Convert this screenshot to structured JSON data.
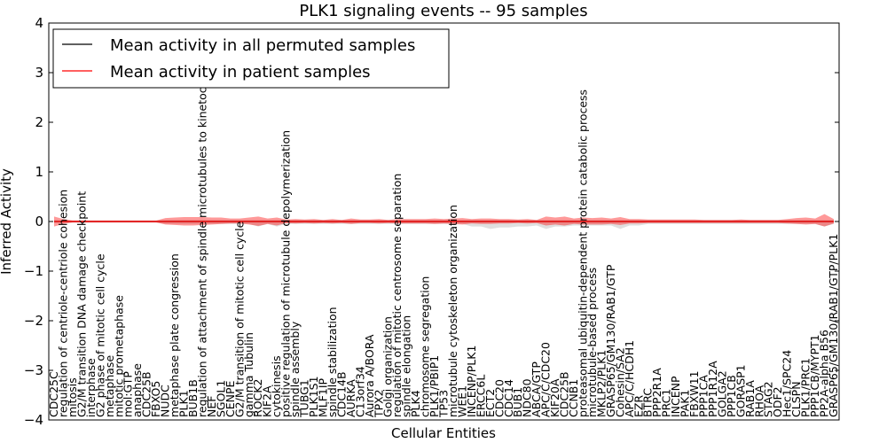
{
  "chart_data": {
    "type": "line",
    "title": "PLK1 signaling events -- 95 samples",
    "xlabel": "Cellular Entities",
    "ylabel": "Inferred Activity",
    "ylim": [
      -4,
      4
    ],
    "yticks": [
      "−4",
      "−3",
      "−2",
      "−1",
      "0",
      "1",
      "2",
      "3",
      "4"
    ],
    "ytick_values": [
      -4,
      -3,
      -2,
      -1,
      0,
      1,
      2,
      3,
      4
    ],
    "legend": {
      "location": "top-left",
      "entries": [
        {
          "label": "Mean activity in all permuted samples",
          "color": "#000000"
        },
        {
          "label": "Mean activity in patient samples",
          "color": "#ff0000"
        }
      ]
    },
    "categories": [
      "CDC25C",
      "regulation of centriole-centriole cohesion",
      "mitosis",
      "G2/M transition DNA damage checkpoint",
      "interphase",
      "G2 phase of mitotic cell cycle",
      "metaphase",
      "mitotic prometaphase",
      "mol:GTP",
      "anaphase",
      "CDC25B",
      "FBXO5",
      "NUDC",
      "metaphase plate congression",
      "PLK1",
      "BUB1B",
      "regulation of attachment of spindle microtubules to kinetochore",
      "NEF",
      "SGOL1",
      "CENPE",
      "G2/M transition of mitotic cell cycle",
      "gamma Tubulin",
      "ROCK2",
      "KIF2A",
      "cytokinesis",
      "positive regulation of microtubule depolymerization",
      "spindle assembly",
      "TUBG1",
      "PLK1S1",
      "MLF1IP",
      "spindle stabilization",
      "CDC14B",
      "AURKA",
      "C13orf34",
      "Aurora A/BORA",
      "TPX2",
      "Golgi organization",
      "regulation of mitotic centrosome separation",
      "spindle elongation",
      "PLK4",
      "chromosome segregation",
      "PLK1/PBIP1",
      "TP53",
      "microtubule cytoskeleton organization",
      "WEE1",
      "INCENP/PLK1",
      "ERCC6L",
      "ECT2",
      "CDC20",
      "CDC14",
      "BUB1",
      "NDC80",
      "ABCA/GTP",
      "APC/C/CDC20",
      "KIF20A",
      "CDC25B",
      "CCNB1",
      "proteasomal ubiquitin-dependent protein catabolic process",
      "microtubule-based process",
      "MKLP2/PLK1",
      "GRASP65/GM130/RAB1/GTP",
      "Cohesin/SA2",
      "APC/C/HCDH1",
      "EZR",
      "BTRC",
      "PPP2R1A",
      "PRC1",
      "INCENP",
      "PAK1",
      "FBXW11",
      "PPP1CA",
      "PPP1R12A",
      "GOLGA2",
      "PPP1CB",
      "GORASP1",
      "RAB1A",
      "RHOA",
      "STAG2",
      "ODF2",
      "Hec1/SPC24",
      "CLSPN",
      "PLK1/PRC1",
      "PPP1CB/MYPT1",
      "PP2A-alpha B56",
      "GRASP65/GM130/RAB1/GTP/PLK1"
    ],
    "series": [
      {
        "name": "Mean activity in patient samples",
        "color": "#ff0000",
        "values": [
          0.0,
          0.0,
          0.0,
          0.0,
          0.0,
          0.0,
          0.0,
          0.0,
          0.0,
          0.0,
          0.0,
          0.0,
          0.0,
          0.0,
          0.0,
          0.0,
          0.0,
          0.0,
          0.0,
          0.0,
          0.0,
          0.0,
          0.0,
          0.0,
          0.0,
          0.0,
          0.0,
          0.0,
          0.0,
          0.0,
          0.0,
          0.0,
          0.0,
          0.0,
          0.0,
          0.0,
          0.0,
          0.0,
          0.0,
          0.0,
          0.0,
          0.0,
          0.0,
          0.0,
          0.0,
          0.0,
          0.0,
          0.0,
          0.0,
          0.0,
          0.0,
          0.0,
          0.0,
          0.0,
          0.0,
          0.0,
          0.0,
          0.0,
          0.0,
          0.0,
          0.0,
          0.0,
          0.0,
          0.0,
          0.0,
          0.0,
          0.0,
          0.0,
          0.0,
          0.0,
          0.0,
          0.0,
          0.0,
          0.0,
          0.0,
          0.0,
          0.0,
          0.0,
          0.0,
          0.0,
          0.0,
          0.0,
          0.0,
          0.0,
          0.0
        ],
        "upper": [
          0.1,
          0.05,
          0.02,
          0.02,
          0.02,
          0.02,
          0.02,
          0.02,
          0.02,
          0.02,
          0.02,
          0.02,
          0.07,
          0.08,
          0.09,
          0.09,
          0.09,
          0.08,
          0.08,
          0.06,
          0.06,
          0.08,
          0.1,
          0.06,
          0.08,
          0.04,
          0.05,
          0.04,
          0.05,
          0.03,
          0.05,
          0.03,
          0.06,
          0.04,
          0.04,
          0.05,
          0.03,
          0.05,
          0.05,
          0.05,
          0.05,
          0.06,
          0.05,
          0.06,
          0.07,
          0.05,
          0.06,
          0.06,
          0.05,
          0.05,
          0.04,
          0.05,
          0.03,
          0.1,
          0.08,
          0.1,
          0.06,
          0.08,
          0.07,
          0.08,
          0.06,
          0.09,
          0.05,
          0.05,
          0.04,
          0.04,
          0.04,
          0.04,
          0.04,
          0.04,
          0.03,
          0.03,
          0.03,
          0.03,
          0.04,
          0.03,
          0.03,
          0.03,
          0.03,
          0.05,
          0.07,
          0.08,
          0.06,
          0.15,
          0.05
        ],
        "lower": [
          -0.1,
          -0.05,
          -0.02,
          -0.02,
          -0.02,
          -0.02,
          -0.02,
          -0.02,
          -0.02,
          -0.02,
          -0.02,
          -0.02,
          -0.06,
          -0.07,
          -0.08,
          -0.08,
          -0.07,
          -0.06,
          -0.05,
          -0.04,
          -0.04,
          -0.06,
          -0.09,
          -0.05,
          -0.08,
          -0.03,
          -0.04,
          -0.03,
          -0.04,
          -0.03,
          -0.04,
          -0.03,
          -0.05,
          -0.03,
          -0.03,
          -0.04,
          -0.03,
          -0.04,
          -0.04,
          -0.04,
          -0.04,
          -0.05,
          -0.04,
          -0.05,
          -0.06,
          -0.04,
          -0.05,
          -0.05,
          -0.04,
          -0.04,
          -0.03,
          -0.04,
          -0.03,
          -0.08,
          -0.06,
          -0.08,
          -0.05,
          -0.06,
          -0.06,
          -0.06,
          -0.05,
          -0.07,
          -0.04,
          -0.04,
          -0.03,
          -0.03,
          -0.03,
          -0.03,
          -0.03,
          -0.03,
          -0.03,
          -0.03,
          -0.03,
          -0.03,
          -0.03,
          -0.03,
          -0.03,
          -0.03,
          -0.03,
          -0.04,
          -0.05,
          -0.06,
          -0.05,
          -0.1,
          -0.04
        ]
      },
      {
        "name": "Mean activity in all permuted samples",
        "color": "#000000",
        "values": [
          0.0,
          0.0,
          0.0,
          0.0,
          0.0,
          0.0,
          0.0,
          0.0,
          0.0,
          0.0,
          0.0,
          0.0,
          0.0,
          0.0,
          0.0,
          0.0,
          0.0,
          0.0,
          0.0,
          0.0,
          0.0,
          0.0,
          0.0,
          0.0,
          0.0,
          0.0,
          0.0,
          0.0,
          0.0,
          0.0,
          0.0,
          0.0,
          0.0,
          0.0,
          0.0,
          0.0,
          0.0,
          0.0,
          0.0,
          0.0,
          0.0,
          0.0,
          0.0,
          0.0,
          0.0,
          0.0,
          0.0,
          0.0,
          0.0,
          0.0,
          0.0,
          0.0,
          0.0,
          0.0,
          0.0,
          0.0,
          0.0,
          0.0,
          0.0,
          0.0,
          0.0,
          0.0,
          0.0,
          0.0,
          0.0,
          0.0,
          0.0,
          0.0,
          0.0,
          0.0,
          0.0,
          0.0,
          0.0,
          0.0,
          0.0,
          0.0,
          0.0,
          0.0,
          0.0,
          0.0,
          0.0,
          0.0,
          0.0,
          0.0,
          0.0
        ],
        "upper": [
          0.03,
          0.02,
          0.02,
          0.02,
          0.02,
          0.02,
          0.02,
          0.02,
          0.02,
          0.02,
          0.02,
          0.02,
          0.03,
          0.03,
          0.03,
          0.03,
          0.03,
          0.03,
          0.03,
          0.03,
          0.03,
          0.03,
          0.03,
          0.03,
          0.03,
          0.03,
          0.03,
          0.03,
          0.03,
          0.03,
          0.03,
          0.03,
          0.03,
          0.03,
          0.03,
          0.03,
          0.03,
          0.03,
          0.03,
          0.03,
          0.03,
          0.03,
          0.03,
          0.03,
          0.03,
          0.03,
          0.03,
          0.03,
          0.03,
          0.03,
          0.03,
          0.03,
          0.03,
          0.03,
          0.03,
          0.03,
          0.03,
          0.03,
          0.03,
          0.03,
          0.03,
          0.03,
          0.03,
          0.03,
          0.03,
          0.03,
          0.03,
          0.03,
          0.03,
          0.03,
          0.03,
          0.03,
          0.03,
          0.03,
          0.03,
          0.03,
          0.03,
          0.03,
          0.03,
          0.03,
          0.03,
          0.03,
          0.03,
          0.03,
          0.03
        ],
        "lower": [
          -0.03,
          -0.02,
          -0.02,
          -0.02,
          -0.02,
          -0.02,
          -0.02,
          -0.02,
          -0.02,
          -0.02,
          -0.02,
          -0.02,
          -0.05,
          -0.05,
          -0.05,
          -0.05,
          -0.05,
          -0.05,
          -0.05,
          -0.05,
          -0.05,
          -0.05,
          -0.1,
          -0.05,
          -0.1,
          -0.05,
          -0.05,
          -0.05,
          -0.05,
          -0.05,
          -0.05,
          -0.05,
          -0.05,
          -0.05,
          -0.05,
          -0.05,
          -0.05,
          -0.05,
          -0.05,
          -0.05,
          -0.05,
          -0.05,
          -0.05,
          -0.05,
          -0.05,
          -0.1,
          -0.1,
          -0.15,
          -0.12,
          -0.12,
          -0.1,
          -0.1,
          -0.08,
          -0.15,
          -0.1,
          -0.1,
          -0.08,
          -0.08,
          -0.08,
          -0.08,
          -0.08,
          -0.15,
          -0.08,
          -0.08,
          -0.05,
          -0.05,
          -0.05,
          -0.05,
          -0.05,
          -0.05,
          -0.05,
          -0.05,
          -0.05,
          -0.05,
          -0.05,
          -0.05,
          -0.05,
          -0.05,
          -0.05,
          -0.05,
          -0.05,
          -0.05,
          -0.05,
          -0.1,
          -0.05
        ]
      }
    ]
  }
}
